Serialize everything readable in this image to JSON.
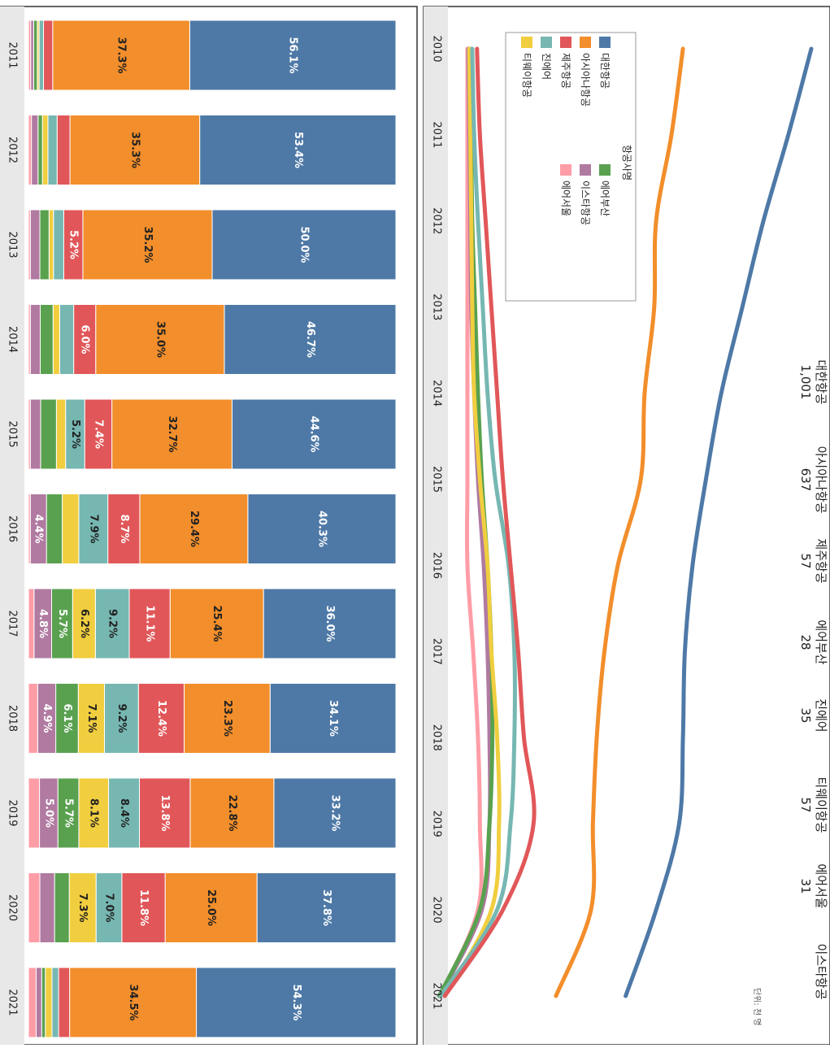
{
  "colors": {
    "대한항공": "#4e79a7",
    "아시아나항공": "#f28e2b",
    "제주항공": "#e15759",
    "진에어": "#76b7b2",
    "티웨이항공": "#f1ce3f",
    "에어부산": "#59a14f",
    "이스타항공": "#b07aa1",
    "에어서울": "#ff9da7"
  },
  "chart_data": [
    {
      "type": "line",
      "legend_title": "항공사명",
      "unit_note": "단위: 천 명",
      "x": [
        "2010",
        "2011",
        "2012",
        "2013",
        "2014",
        "2015",
        "2016",
        "2017",
        "2018",
        "2019",
        "2020",
        "2021"
      ],
      "series": [
        {
          "name": "대한항공",
          "values": [
            1970,
            1850,
            1720,
            1610,
            1500,
            1420,
            1350,
            1310,
            1300,
            1280,
            1160,
            1001
          ]
        },
        {
          "name": "아시아나항공",
          "values": [
            1300,
            1240,
            1160,
            1150,
            1100,
            1080,
            960,
            890,
            850,
            830,
            820,
            637
          ]
        },
        {
          "name": "제주항공",
          "values": [
            225,
            240,
            270,
            300,
            330,
            360,
            400,
            440,
            470,
            520,
            360,
            57
          ]
        },
        {
          "name": "진에어",
          "values": [
            200,
            210,
            230,
            255,
            280,
            320,
            390,
            420,
            420,
            400,
            330,
            35
          ]
        },
        {
          "name": "티웨이항공",
          "values": [
            185,
            190,
            195,
            200,
            210,
            240,
            280,
            300,
            330,
            340,
            300,
            57
          ]
        },
        {
          "name": "에어부산",
          "values": [
            190,
            195,
            200,
            215,
            230,
            250,
            280,
            300,
            305,
            290,
            240,
            28
          ]
        },
        {
          "name": "이스타항공",
          "values": [
            180,
            185,
            190,
            195,
            210,
            230,
            260,
            280,
            290,
            290,
            250,
            31
          ]
        },
        {
          "name": "에어서울",
          "values": [
            175,
            175,
            175,
            175,
            175,
            175,
            175,
            205,
            230,
            240,
            230,
            31
          ]
        }
      ],
      "end_labels": [
        {
          "name": "대한항공",
          "value": "1,001"
        },
        {
          "name": "아시아나항공",
          "value": "637"
        },
        {
          "name": "제주항공",
          "value": "57"
        },
        {
          "name": "에어부산",
          "value": "28"
        },
        {
          "name": "진에어",
          "value": "35"
        },
        {
          "name": "티웨이항공",
          "value": "57"
        },
        {
          "name": "에어서울",
          "value": "31"
        },
        {
          "name": "이스타항공",
          "value": ""
        }
      ],
      "legend_position": "top-left"
    },
    {
      "type": "bar",
      "stacked": true,
      "normalized": true,
      "categories": [
        "2011",
        "2012",
        "2013",
        "2014",
        "2015",
        "2016",
        "2017",
        "2018",
        "2019",
        "2020",
        "2021"
      ],
      "series": [
        {
          "name": "대한항공",
          "values": [
            56.1,
            53.4,
            50.0,
            46.7,
            44.6,
            40.3,
            36.0,
            34.1,
            33.2,
            37.8,
            54.3
          ],
          "labels": [
            "56.1%",
            "53.4%",
            "50.0%",
            "46.7%",
            "44.6%",
            "40.3%",
            "36.0%",
            "34.1%",
            "33.2%",
            "37.8%",
            "54.3%"
          ]
        },
        {
          "name": "아시아나항공",
          "values": [
            37.3,
            35.3,
            35.2,
            35.0,
            32.7,
            29.4,
            25.4,
            23.3,
            22.8,
            25.0,
            34.5
          ],
          "labels": [
            "37.3%",
            "35.3%",
            "35.2%",
            "35.0%",
            "32.7%",
            "29.4%",
            "25.4%",
            "23.3%",
            "22.8%",
            "25.0%",
            "34.5%"
          ]
        },
        {
          "name": "제주항공",
          "values": [
            2.5,
            3.5,
            5.2,
            6.0,
            7.4,
            8.7,
            11.1,
            12.4,
            13.8,
            11.8,
            3.0
          ],
          "labels": [
            "",
            "",
            "5.2%",
            "6.0%",
            "7.4%",
            "8.7%",
            "11.1%",
            "12.4%",
            "13.8%",
            "11.8%",
            ""
          ]
        },
        {
          "name": "진에어",
          "values": [
            1.2,
            2.5,
            2.8,
            3.8,
            5.2,
            7.9,
            9.2,
            9.2,
            8.4,
            7.0,
            1.8
          ],
          "labels": [
            "",
            "",
            "",
            "",
            "5.2%",
            "7.9%",
            "9.2%",
            "9.2%",
            "8.4%",
            "7.0%",
            ""
          ]
        },
        {
          "name": "티웨이항공",
          "values": [
            0.5,
            1.5,
            1.2,
            1.8,
            2.5,
            4.5,
            6.2,
            7.1,
            8.1,
            7.3,
            1.8
          ],
          "labels": [
            "",
            "",
            "",
            "",
            "",
            "",
            "6.2%",
            "7.1%",
            "8.1%",
            "7.3%",
            ""
          ]
        },
        {
          "name": "에어부산",
          "values": [
            1.0,
            1.2,
            2.5,
            3.5,
            4.3,
            4.3,
            5.7,
            6.1,
            5.7,
            4.0,
            1.0
          ],
          "labels": [
            "",
            "",
            "",
            "",
            "",
            "",
            "5.7%",
            "6.1%",
            "5.7%",
            "",
            ""
          ]
        },
        {
          "name": "이스타항공",
          "values": [
            0.8,
            1.8,
            2.6,
            2.7,
            2.8,
            4.4,
            4.8,
            4.9,
            5.0,
            4.0,
            1.5
          ],
          "labels": [
            "",
            "",
            "",
            "",
            "",
            "4.4%",
            "4.8%",
            "4.9%",
            "5.0%",
            "",
            ""
          ]
        },
        {
          "name": "에어서울",
          "values": [
            0.6,
            0.8,
            0.5,
            0.5,
            0.5,
            0.5,
            1.5,
            2.5,
            3.0,
            3.1,
            2.1
          ],
          "labels": [
            "",
            "",
            "",
            "",
            "",
            "",
            "",
            "",
            "",
            "",
            ""
          ]
        }
      ]
    }
  ]
}
